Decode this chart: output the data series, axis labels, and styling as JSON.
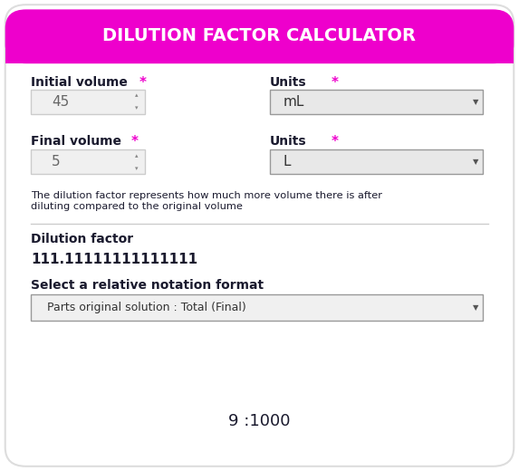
{
  "title": "DILUTION FACTOR CALCULATOR",
  "title_bg": "#ee00cc",
  "title_color": "#ffffff",
  "title_fontsize": 14,
  "bg_color": "#ffffff",
  "card_bg": "#ffffff",
  "asterisk_color": "#ee00cc",
  "field_bg": "#f0f0f0",
  "field_border": "#cccccc",
  "dropdown_bg": "#e8e8e8",
  "dropdown_border": "#999999",
  "description_line1": "The dilution factor represents how much more volume there is after",
  "description_line2": "diluting compared to the original volume",
  "dilution_label": "Dilution factor",
  "dilution_value": "111.11111111111111",
  "notation_label": "Select a relative notation format",
  "notation_dropdown": "Parts original solution : Total (Final)",
  "result_text": "9 :1000",
  "initial_volume_label": "Initial volume",
  "initial_volume_value": "45",
  "final_volume_label": "Final volume",
  "final_volume_value": "5",
  "units_label": "Units",
  "units_initial": "mL",
  "units_final": "L",
  "separator_color": "#cccccc",
  "text_dark": "#1a1a2e",
  "result_fontsize": 13
}
